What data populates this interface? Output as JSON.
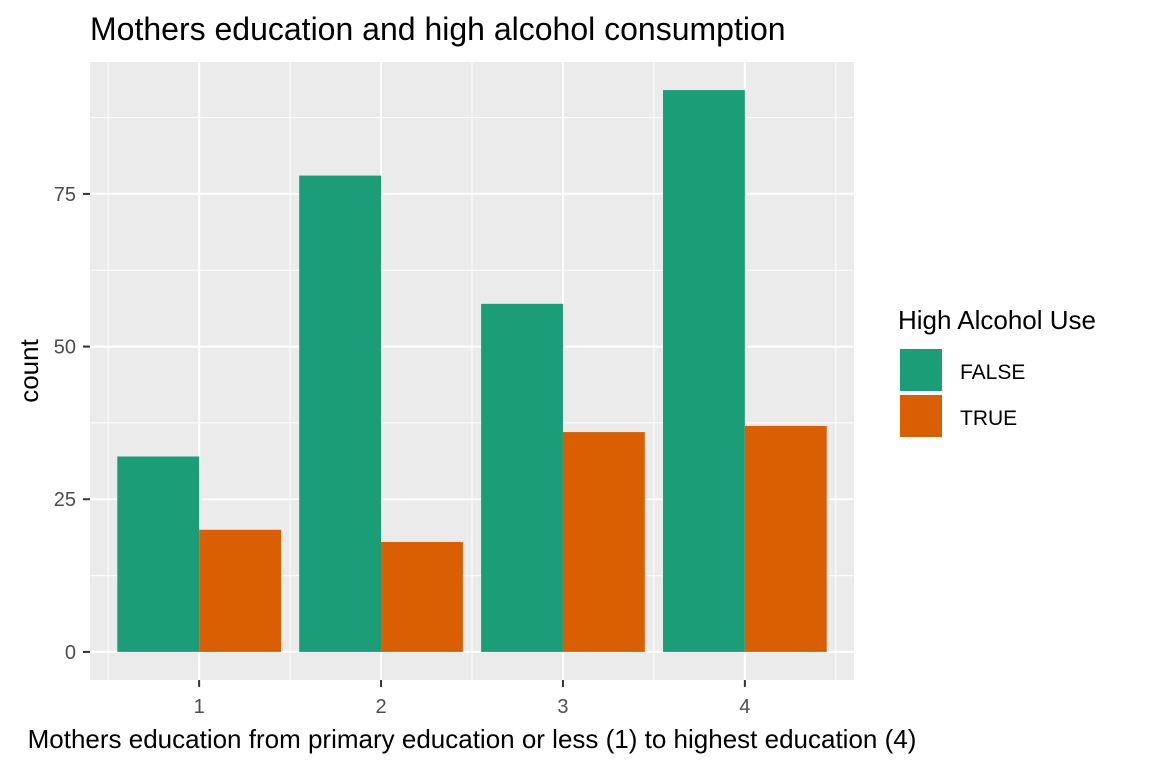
{
  "chart_data": {
    "type": "bar",
    "title": "Mothers education and high alcohol consumption",
    "xlabel": "Mothers education from primary education or less (1) to highest education (4)",
    "ylabel": "count",
    "categories": [
      "1",
      "2",
      "3",
      "4"
    ],
    "series": [
      {
        "name": "FALSE",
        "values": [
          32,
          78,
          57,
          92
        ],
        "color": "#1b9e77"
      },
      {
        "name": "TRUE",
        "values": [
          20,
          18,
          36,
          37
        ],
        "color": "#d95f02"
      }
    ],
    "yticks": [
      0,
      25,
      50,
      75
    ],
    "ylim": [
      -4.6,
      96.6
    ],
    "grid": true,
    "legend": {
      "title": "High Alcohol Use",
      "position": "right"
    }
  }
}
